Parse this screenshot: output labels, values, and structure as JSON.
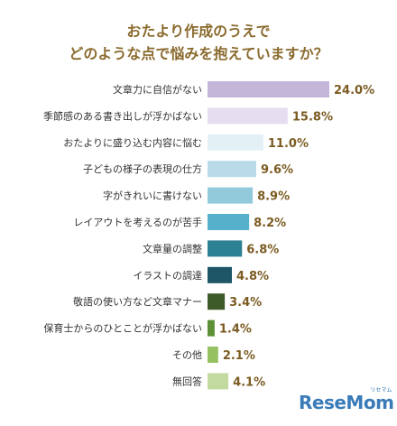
{
  "chart_data": {
    "type": "bar",
    "orientation": "horizontal",
    "title_lines": [
      "おたより作成のうえで",
      "どのような点で悩みを抱えていますか？"
    ],
    "categories": [
      "文章力に自信がない",
      "季節感のある書き出しが浮かばない",
      "おたよりに盛り込む内容に悩む",
      "子どもの様子の表現の仕方",
      "字がきれいに書けない",
      "レイアウトを考えるのが苦手",
      "文章量の調整",
      "イラストの調達",
      "敬語の使い方など文章マナー",
      "保育士からのひとことが浮かばない",
      "その他",
      "無回答"
    ],
    "values": [
      24.0,
      15.8,
      11.0,
      9.6,
      8.9,
      8.2,
      6.8,
      4.8,
      3.4,
      1.4,
      2.1,
      4.1
    ],
    "value_labels": [
      "24.0%",
      "15.8%",
      "11.0%",
      "9.6%",
      "8.9%",
      "8.2%",
      "6.8%",
      "4.8%",
      "3.4%",
      "1.4%",
      "2.1%",
      "4.1%"
    ],
    "colors": [
      "#c3b6d9",
      "#e4def0",
      "#e3f1f6",
      "#b9dbe8",
      "#92cadb",
      "#55b0cb",
      "#2c8093",
      "#1e5667",
      "#3d5a29",
      "#5d8f37",
      "#96c160",
      "#c2daa0"
    ],
    "xlim": [
      0,
      25
    ]
  },
  "logo": {
    "text": "ReseMom",
    "small_text": "リセマム"
  }
}
